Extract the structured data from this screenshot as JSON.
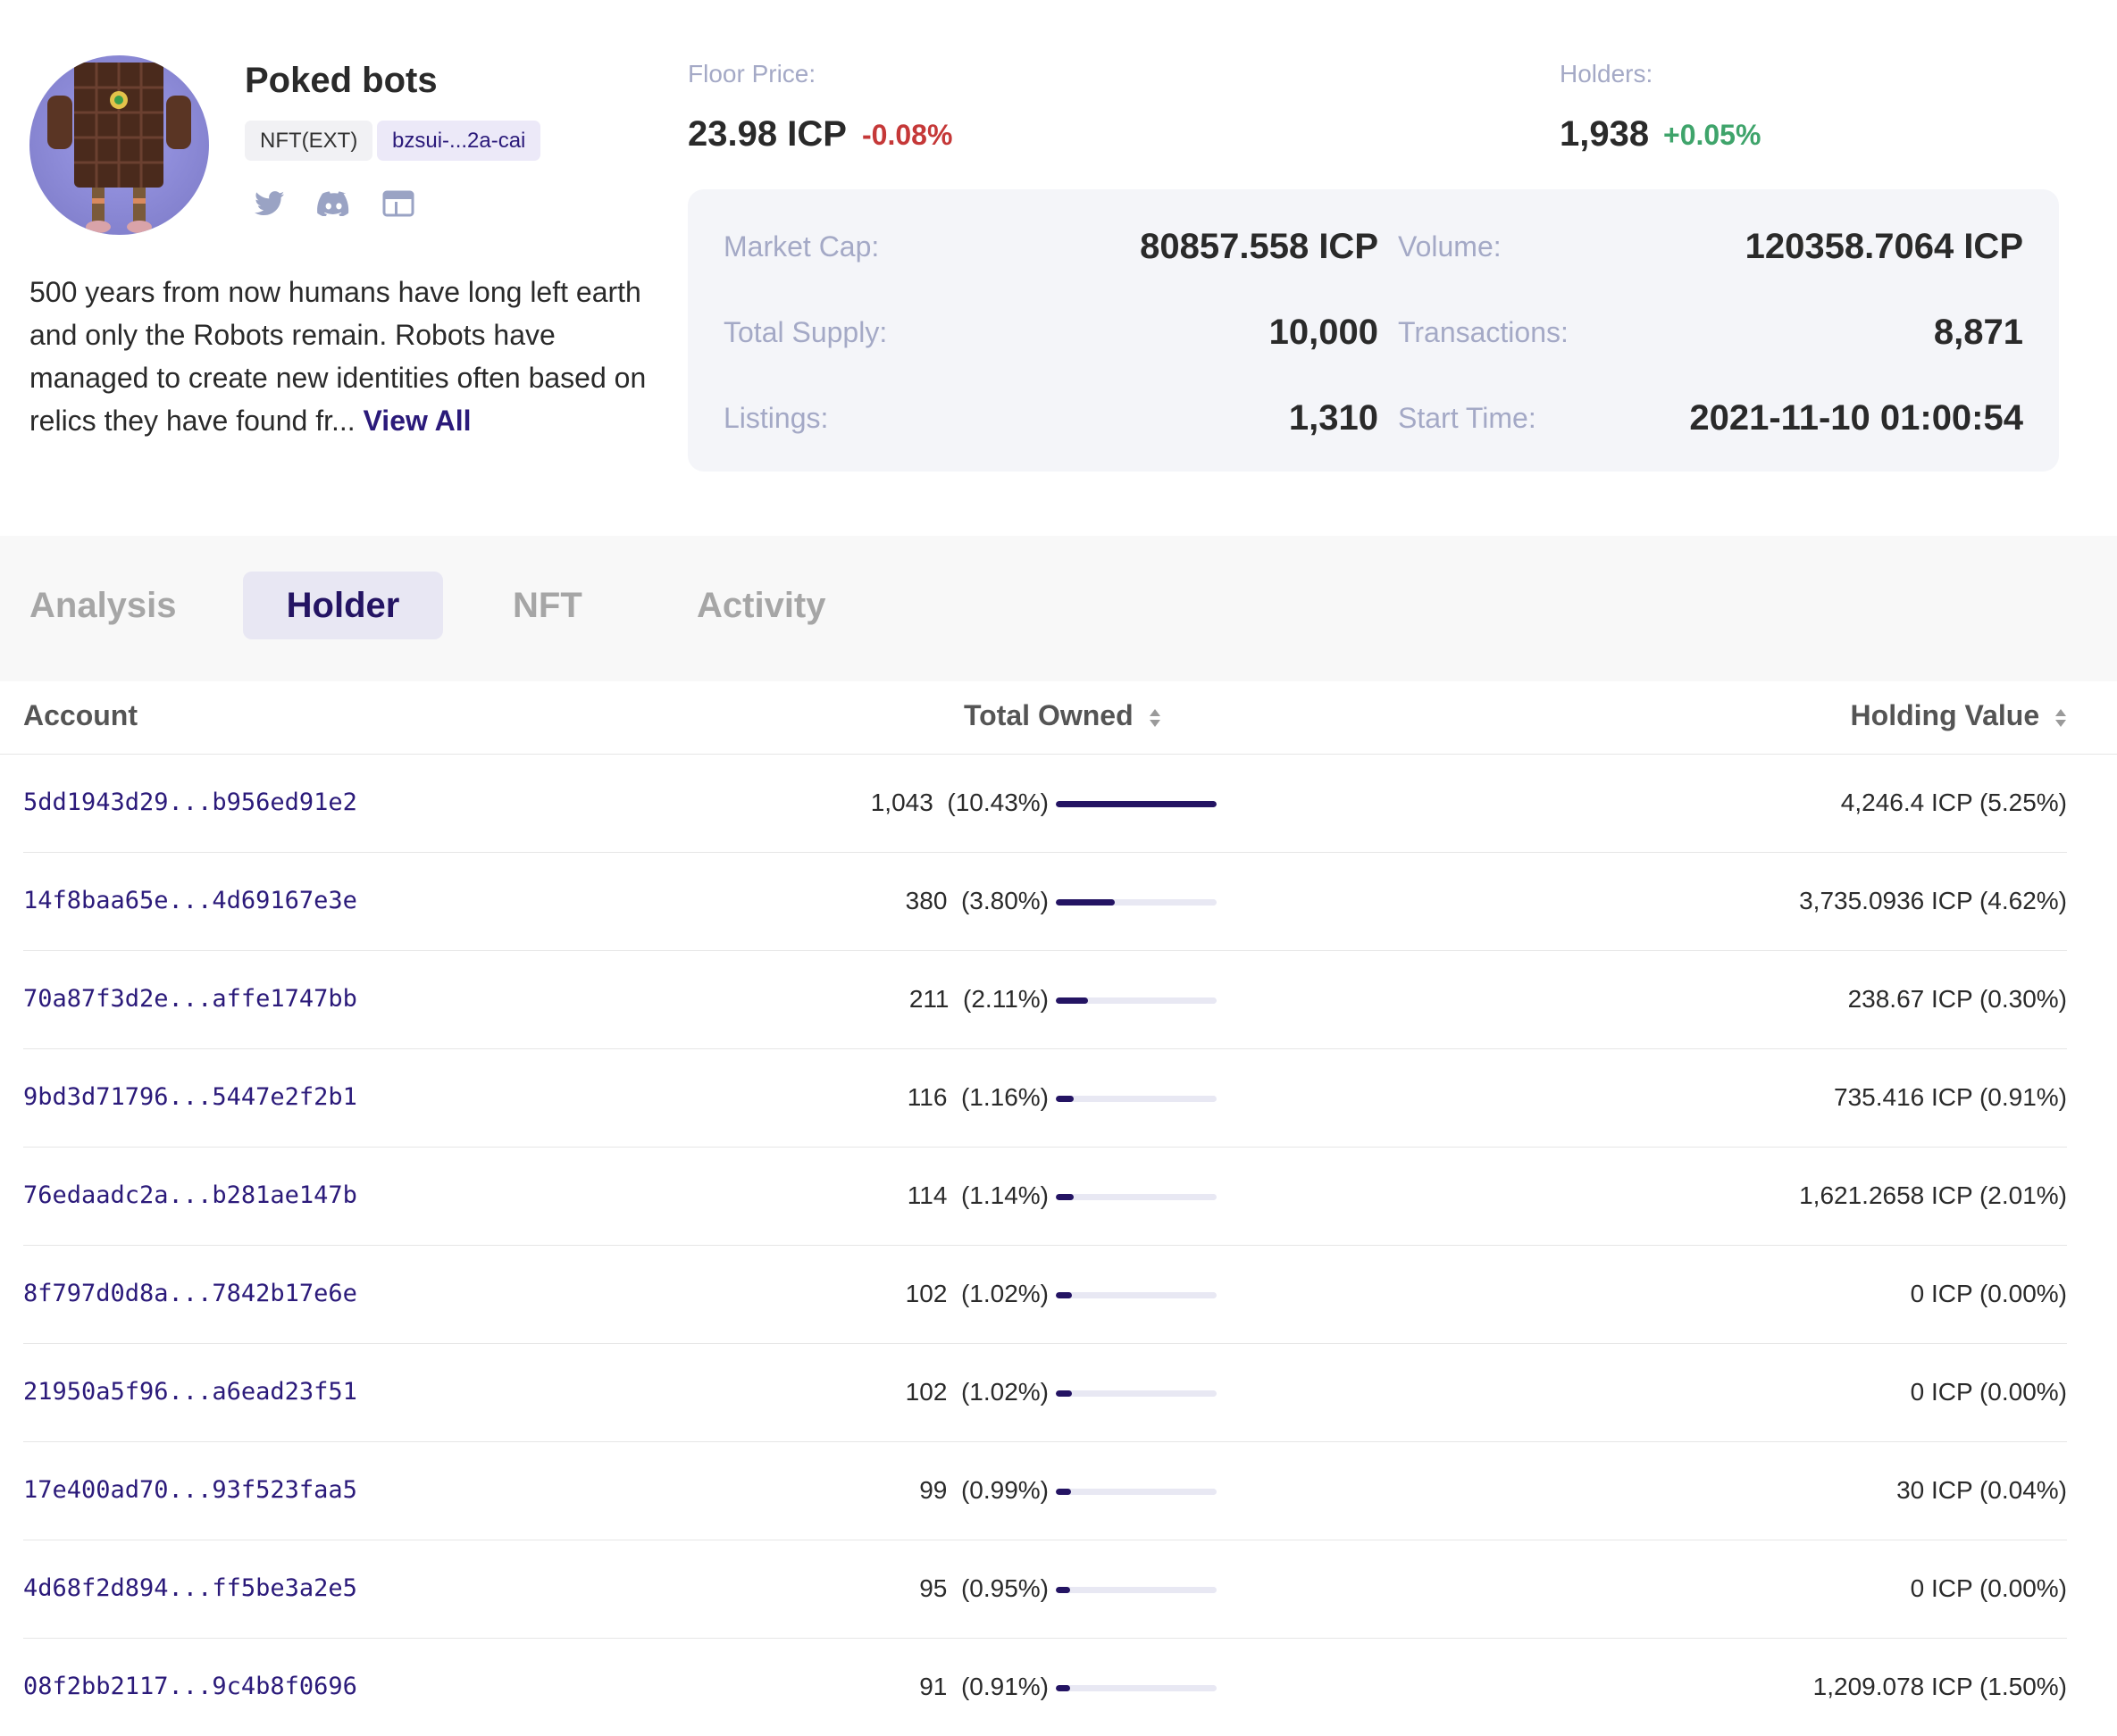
{
  "collection": {
    "name": "Poked bots",
    "standard": "NFT(EXT)",
    "canister": "bzsui-...2a-cai",
    "description_text": "500 years from now humans have long left earth and only the Robots remain. Robots have managed to create new identities often based on relics they have found fr...",
    "view_all": "View All",
    "social_icons": [
      "twitter-icon",
      "discord-icon",
      "website-icon"
    ]
  },
  "floor": {
    "label": "Floor Price:",
    "value": "23.98 ICP",
    "change": "-0.08%"
  },
  "holders": {
    "label": "Holders:",
    "value": "1,938",
    "change": "+0.05%"
  },
  "stats": {
    "market_cap": {
      "label": "Market Cap:",
      "value": "80857.558 ICP"
    },
    "volume": {
      "label": "Volume:",
      "value": "120358.7064 ICP"
    },
    "total_supply": {
      "label": "Total Supply:",
      "value": "10,000"
    },
    "transactions": {
      "label": "Transactions:",
      "value": "8,871"
    },
    "listings": {
      "label": "Listings:",
      "value": "1,310"
    },
    "start_time": {
      "label": "Start Time:",
      "value": "2021-11-10 01:00:54"
    }
  },
  "tabs": [
    "Analysis",
    "Holder",
    "NFT",
    "Activity"
  ],
  "active_tab": "Holder",
  "table": {
    "headers": {
      "account": "Account",
      "total_owned": "Total Owned",
      "holding_value": "Holding Value"
    },
    "rows": [
      {
        "account": "5dd1943d29...b956ed91e2",
        "owned": "1,043",
        "pct": "(10.43%)",
        "share": 1.0,
        "value": "4,246.4 ICP (5.25%)"
      },
      {
        "account": "14f8baa65e...4d69167e3e",
        "owned": "380",
        "pct": "(3.80%)",
        "share": 0.364,
        "value": "3,735.0936 ICP (4.62%)"
      },
      {
        "account": "70a87f3d2e...affe1747bb",
        "owned": "211",
        "pct": "(2.11%)",
        "share": 0.202,
        "value": "238.67 ICP (0.30%)"
      },
      {
        "account": "9bd3d71796...5447e2f2b1",
        "owned": "116",
        "pct": "(1.16%)",
        "share": 0.111,
        "value": "735.416 ICP (0.91%)"
      },
      {
        "account": "76edaadc2a...b281ae147b",
        "owned": "114",
        "pct": "(1.14%)",
        "share": 0.109,
        "value": "1,621.2658 ICP (2.01%)"
      },
      {
        "account": "8f797d0d8a...7842b17e6e",
        "owned": "102",
        "pct": "(1.02%)",
        "share": 0.098,
        "value": "0 ICP (0.00%)"
      },
      {
        "account": "21950a5f96...a6ead23f51",
        "owned": "102",
        "pct": "(1.02%)",
        "share": 0.098,
        "value": "0 ICP (0.00%)"
      },
      {
        "account": "17e400ad70...93f523faa5",
        "owned": "99",
        "pct": "(0.99%)",
        "share": 0.095,
        "value": "30 ICP (0.04%)"
      },
      {
        "account": "4d68f2d894...ff5be3a2e5",
        "owned": "95",
        "pct": "(0.95%)",
        "share": 0.091,
        "value": "0 ICP (0.00%)"
      },
      {
        "account": "08f2bb2117...9c4b8f0696",
        "owned": "91",
        "pct": "(0.91%)",
        "share": 0.087,
        "value": "1,209.078 ICP (1.50%)"
      }
    ]
  }
}
